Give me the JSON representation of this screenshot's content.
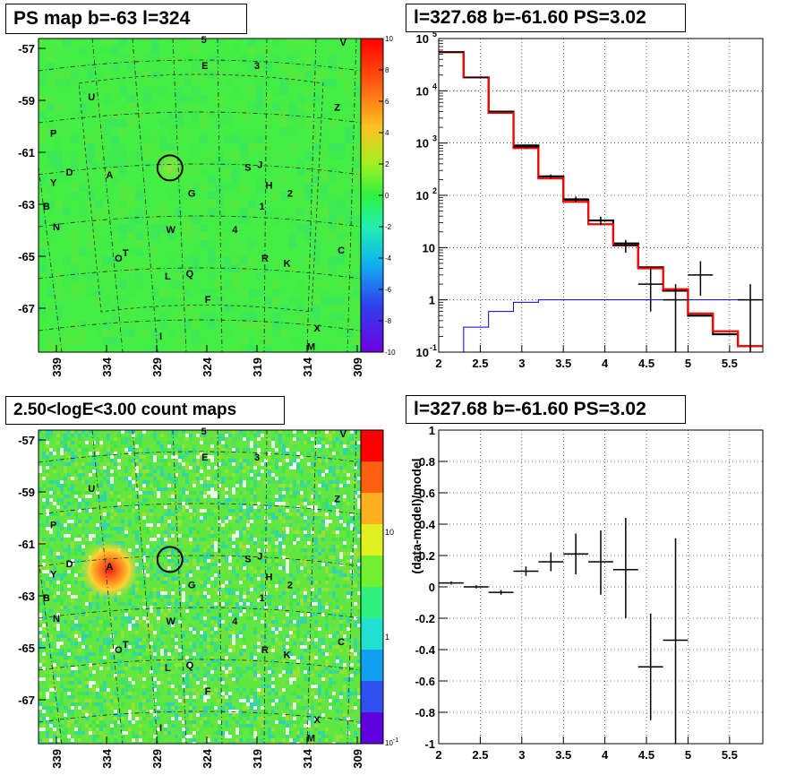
{
  "panels": {
    "tl": {
      "title": "PS map b=-63 l=324"
    },
    "tr": {
      "title": "l=327.68 b=-61.60 PS=3.02"
    },
    "bl": {
      "title": "2.50<logE<3.00 count maps"
    },
    "br": {
      "title": "l=327.68 b=-61.60 PS=3.02"
    }
  },
  "colors": {
    "map_green": "#40f040",
    "data": "#000000",
    "model": "#ff0000",
    "background_model": "#0000cc"
  },
  "maps": {
    "y_ticks": [
      "-57",
      "-59",
      "-61",
      "-63",
      "-65",
      "-67"
    ],
    "x_ticks": [
      "339",
      "334",
      "329",
      "324",
      "319",
      "314",
      "309"
    ],
    "ps_colorbar_ticks": [
      "10",
      "8",
      "6",
      "4",
      "2",
      "0",
      "-2",
      "-4",
      "-6",
      "-8",
      "-10"
    ],
    "count_colorbar_ticks": [
      "10",
      "1",
      "10-1"
    ],
    "source_labels": [
      {
        "t": "5",
        "l": 324.3,
        "b": -56.8
      },
      {
        "t": "V",
        "l": 310.4,
        "b": -56.9
      },
      {
        "t": "E",
        "l": 324.2,
        "b": -57.8
      },
      {
        "t": "3",
        "l": 319.0,
        "b": -57.8
      },
      {
        "t": "U",
        "l": 335.5,
        "b": -59.0
      },
      {
        "t": "Z",
        "l": 311.0,
        "b": -59.4
      },
      {
        "t": "P",
        "l": 339.3,
        "b": -60.4
      },
      {
        "t": "D",
        "l": 337.7,
        "b": -61.9
      },
      {
        "t": "A",
        "l": 333.7,
        "b": -62.0
      },
      {
        "t": "Y",
        "l": 339.3,
        "b": -62.3
      },
      {
        "t": "S",
        "l": 319.9,
        "b": -61.7
      },
      {
        "t": "J",
        "l": 318.7,
        "b": -61.6
      },
      {
        "t": "H",
        "l": 317.8,
        "b": -62.4
      },
      {
        "t": "2",
        "l": 315.7,
        "b": -62.7
      },
      {
        "t": "G",
        "l": 325.5,
        "b": -62.7
      },
      {
        "t": "B",
        "l": 340.0,
        "b": -63.2
      },
      {
        "t": "1",
        "l": 318.5,
        "b": -63.2
      },
      {
        "t": "N",
        "l": 339.0,
        "b": -64.0
      },
      {
        "t": "W",
        "l": 327.6,
        "b": -64.1
      },
      {
        "t": "4",
        "l": 321.2,
        "b": -64.1
      },
      {
        "t": "C",
        "l": 310.6,
        "b": -64.9
      },
      {
        "t": "T",
        "l": 332.1,
        "b": -65.0
      },
      {
        "t": "O",
        "l": 332.8,
        "b": -65.2
      },
      {
        "t": "R",
        "l": 318.2,
        "b": -65.2
      },
      {
        "t": "K",
        "l": 316.0,
        "b": -65.4
      },
      {
        "t": "L",
        "l": 327.9,
        "b": -65.9
      },
      {
        "t": "Q",
        "l": 325.7,
        "b": -65.8
      },
      {
        "t": "F",
        "l": 323.9,
        "b": -66.8
      },
      {
        "t": "X",
        "l": 313.0,
        "b": -67.9
      },
      {
        "t": "I",
        "l": 328.6,
        "b": -68.2
      },
      {
        "t": "M",
        "l": 313.6,
        "b": -68.6
      }
    ],
    "source_circle": {
      "l": 327.68,
      "b": -61.6
    },
    "bright_source": {
      "l": 333.7,
      "b": -62.0
    }
  },
  "chart_data": [
    {
      "type": "line",
      "panel": "tr",
      "title": "l=327.68 b=-61.60 PS=3.02",
      "xlabel": "",
      "ylabel": "",
      "xlim": [
        2,
        5.9
      ],
      "ylim": [
        0.1,
        100000
      ],
      "y_scale": "log",
      "grid": true,
      "x_ticks": [
        "2",
        "2.5",
        "3",
        "3.5",
        "4",
        "4.5",
        "5",
        "5.5"
      ],
      "y_ticks": [
        "10^5",
        "10^4",
        "10^3",
        "10^2",
        "10",
        "1",
        "10^-1"
      ],
      "bin_edges": [
        2,
        2.3,
        2.6,
        2.9,
        3.2,
        3.5,
        3.8,
        4.1,
        4.4,
        4.7,
        5.0,
        5.3,
        5.6,
        5.9
      ],
      "series": [
        {
          "values": [
            55000,
            18000,
            4000,
            900,
            230,
            82,
            33,
            12,
            4.2,
            1.5,
            0.5,
            0.22,
            0.13
          ]
        },
        {
          "values": [
            55000,
            18000,
            3800,
            800,
            210,
            75,
            28,
            11,
            4.0,
            1.6,
            0.55,
            0.25,
            0.13
          ]
        },
        {
          "values": [
            0.1,
            0.3,
            0.6,
            0.9,
            1.0,
            1.0,
            1.0,
            1.0,
            1.0,
            1.0,
            1.0,
            1.0,
            1.0
          ]
        }
      ],
      "points": [
        {
          "x": 2.15,
          "y": 55000,
          "xerr": 0.15,
          "lo": 54000,
          "hi": 56000
        },
        {
          "x": 2.45,
          "y": 18000,
          "xerr": 0.15,
          "lo": 17800,
          "hi": 18200
        },
        {
          "x": 2.75,
          "y": 4000,
          "xerr": 0.15,
          "lo": 3900,
          "hi": 4100
        },
        {
          "x": 3.05,
          "y": 850,
          "xerr": 0.15,
          "lo": 800,
          "hi": 900
        },
        {
          "x": 3.35,
          "y": 230,
          "xerr": 0.15,
          "lo": 210,
          "hi": 250
        },
        {
          "x": 3.65,
          "y": 85,
          "xerr": 0.15,
          "lo": 75,
          "hi": 95
        },
        {
          "x": 3.95,
          "y": 33,
          "xerr": 0.15,
          "lo": 27,
          "hi": 39
        },
        {
          "x": 4.25,
          "y": 11,
          "xerr": 0.15,
          "lo": 8,
          "hi": 14
        },
        {
          "x": 4.55,
          "y": 2,
          "xerr": 0.15,
          "lo": 0.6,
          "hi": 4
        },
        {
          "x": 4.85,
          "y": 1,
          "xerr": 0.15,
          "lo": 0.1,
          "hi": 2
        },
        {
          "x": 5.15,
          "y": 3,
          "xerr": 0.15,
          "lo": 1.2,
          "hi": 5.5
        },
        {
          "x": 5.75,
          "y": 1,
          "xerr": 0.15,
          "lo": 0.1,
          "hi": 2
        }
      ]
    },
    {
      "type": "scatter",
      "panel": "br",
      "title": "l=327.68 b=-61.60 PS=3.02",
      "xlabel": "",
      "ylabel": "(data-model)/model",
      "xlim": [
        2,
        5.9
      ],
      "ylim": [
        -1,
        1
      ],
      "grid": true,
      "x_ticks": [
        "2",
        "2.5",
        "3",
        "3.5",
        "4",
        "4.5",
        "5",
        "5.5"
      ],
      "y_ticks": [
        "1",
        "0.8",
        "0.6",
        "0.4",
        "0.2",
        "0",
        "-0.2",
        "-0.4",
        "-0.6",
        "-0.8",
        "-1"
      ],
      "points": [
        {
          "x": 2.15,
          "y": 0.025,
          "xerr": 0.15,
          "lo": 0.015,
          "hi": 0.035
        },
        {
          "x": 2.45,
          "y": 0.0,
          "xerr": 0.15,
          "lo": -0.01,
          "hi": 0.01
        },
        {
          "x": 2.75,
          "y": -0.035,
          "xerr": 0.15,
          "lo": -0.05,
          "hi": -0.02
        },
        {
          "x": 3.05,
          "y": 0.1,
          "xerr": 0.15,
          "lo": 0.07,
          "hi": 0.13
        },
        {
          "x": 3.35,
          "y": 0.16,
          "xerr": 0.15,
          "lo": 0.1,
          "hi": 0.22
        },
        {
          "x": 3.65,
          "y": 0.21,
          "xerr": 0.15,
          "lo": 0.08,
          "hi": 0.34
        },
        {
          "x": 3.95,
          "y": 0.16,
          "xerr": 0.15,
          "lo": -0.05,
          "hi": 0.36
        },
        {
          "x": 4.25,
          "y": 0.11,
          "xerr": 0.15,
          "lo": -0.2,
          "hi": 0.44
        },
        {
          "x": 4.55,
          "y": -0.51,
          "xerr": 0.15,
          "lo": -0.85,
          "hi": -0.17
        },
        {
          "x": 4.85,
          "y": -0.34,
          "xerr": 0.15,
          "lo": -1.0,
          "hi": 0.31
        }
      ]
    }
  ]
}
